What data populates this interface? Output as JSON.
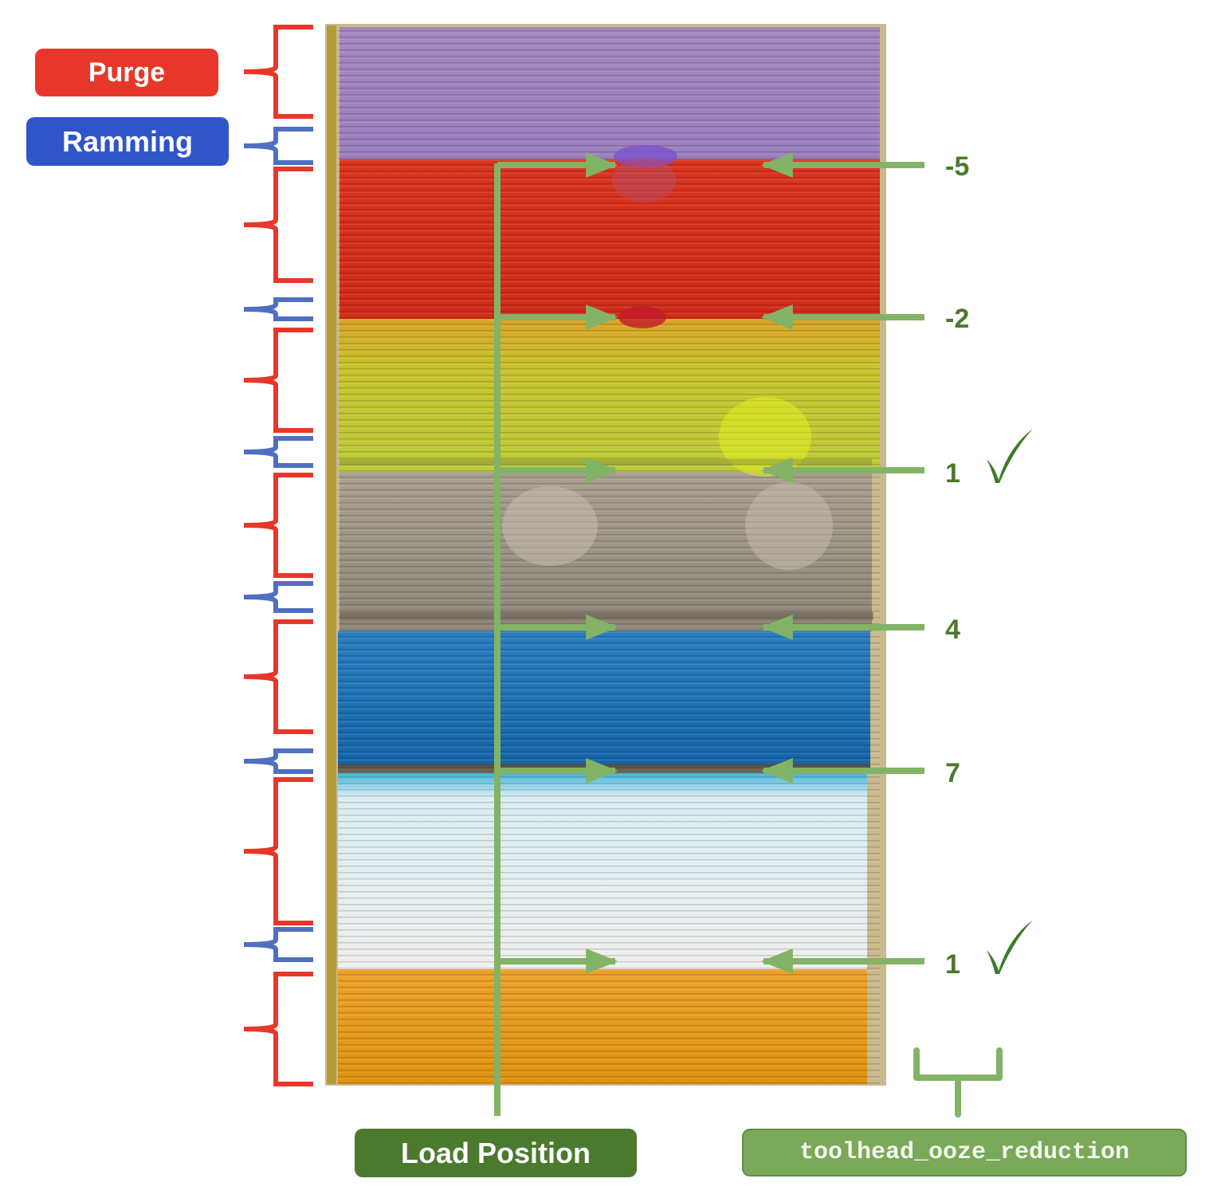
{
  "legend": {
    "purge_label": "Purge",
    "ramming_label": "Ramming"
  },
  "load_position_label": "Load Position",
  "parameter_label": "toolhead_ooze_reduction",
  "test_values": [
    {
      "value": "-5",
      "good": false
    },
    {
      "value": "-2",
      "good": false
    },
    {
      "value": "1",
      "good": true
    },
    {
      "value": "4",
      "good": false
    },
    {
      "value": "7",
      "good": false
    },
    {
      "value": "1",
      "good": true
    }
  ],
  "colors": {
    "purge_bracket": "#e8372a",
    "ramming_bracket": "#4f6fc2",
    "arrow_green": "#82b366",
    "label_dark_green": "#4b7a2e",
    "label_light_green": "#7aa95a",
    "checkmark": "#3f7a2a",
    "filament_bands": [
      "#9a7ab0",
      "#d9321f",
      "#c4ca2c",
      "#a39a8b",
      "#1f6fb4",
      "#e8eef0",
      "#e39a18"
    ]
  }
}
